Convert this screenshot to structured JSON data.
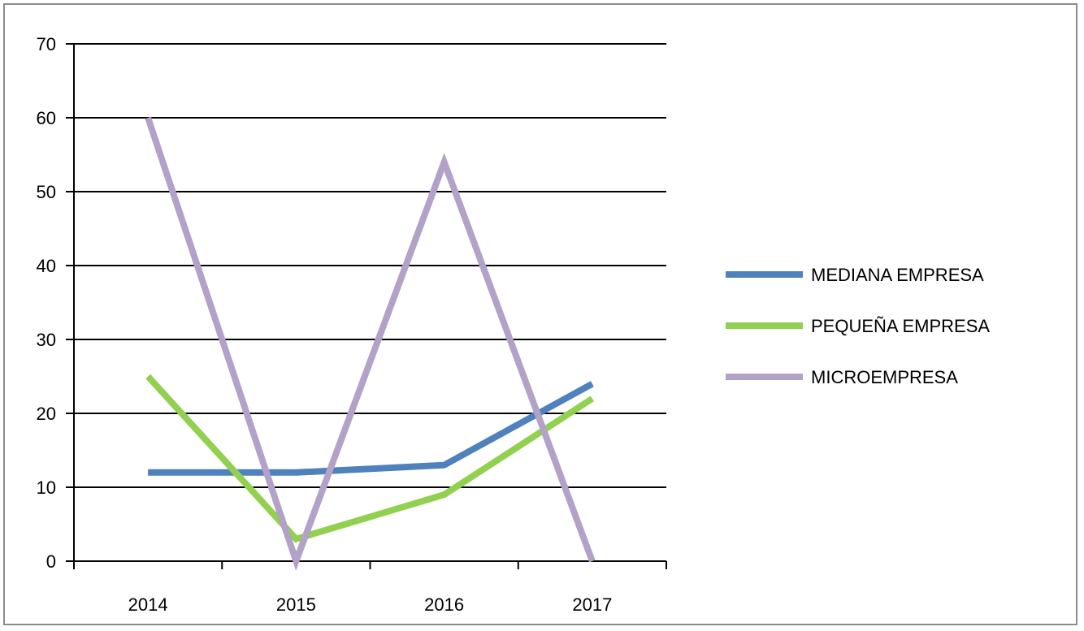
{
  "chart_data": {
    "type": "line",
    "title": "",
    "xlabel": "",
    "ylabel": "",
    "categories": [
      "2014",
      "2015",
      "2016",
      "2017"
    ],
    "ylim": [
      0,
      70
    ],
    "yticks": [
      0,
      10,
      20,
      30,
      40,
      50,
      60,
      70
    ],
    "grid": true,
    "legend_position": "right",
    "series": [
      {
        "name": "MEDIANA EMPRESA",
        "color": "#4f81bd",
        "values": [
          12,
          12,
          13,
          24
        ]
      },
      {
        "name": "PEQUEÑA EMPRESA",
        "color": "#92d050",
        "values": [
          25,
          3,
          9,
          22
        ]
      },
      {
        "name": "MICROEMPRESA",
        "color": "#b3a2c7",
        "values": [
          60,
          0,
          54,
          0
        ]
      }
    ]
  }
}
